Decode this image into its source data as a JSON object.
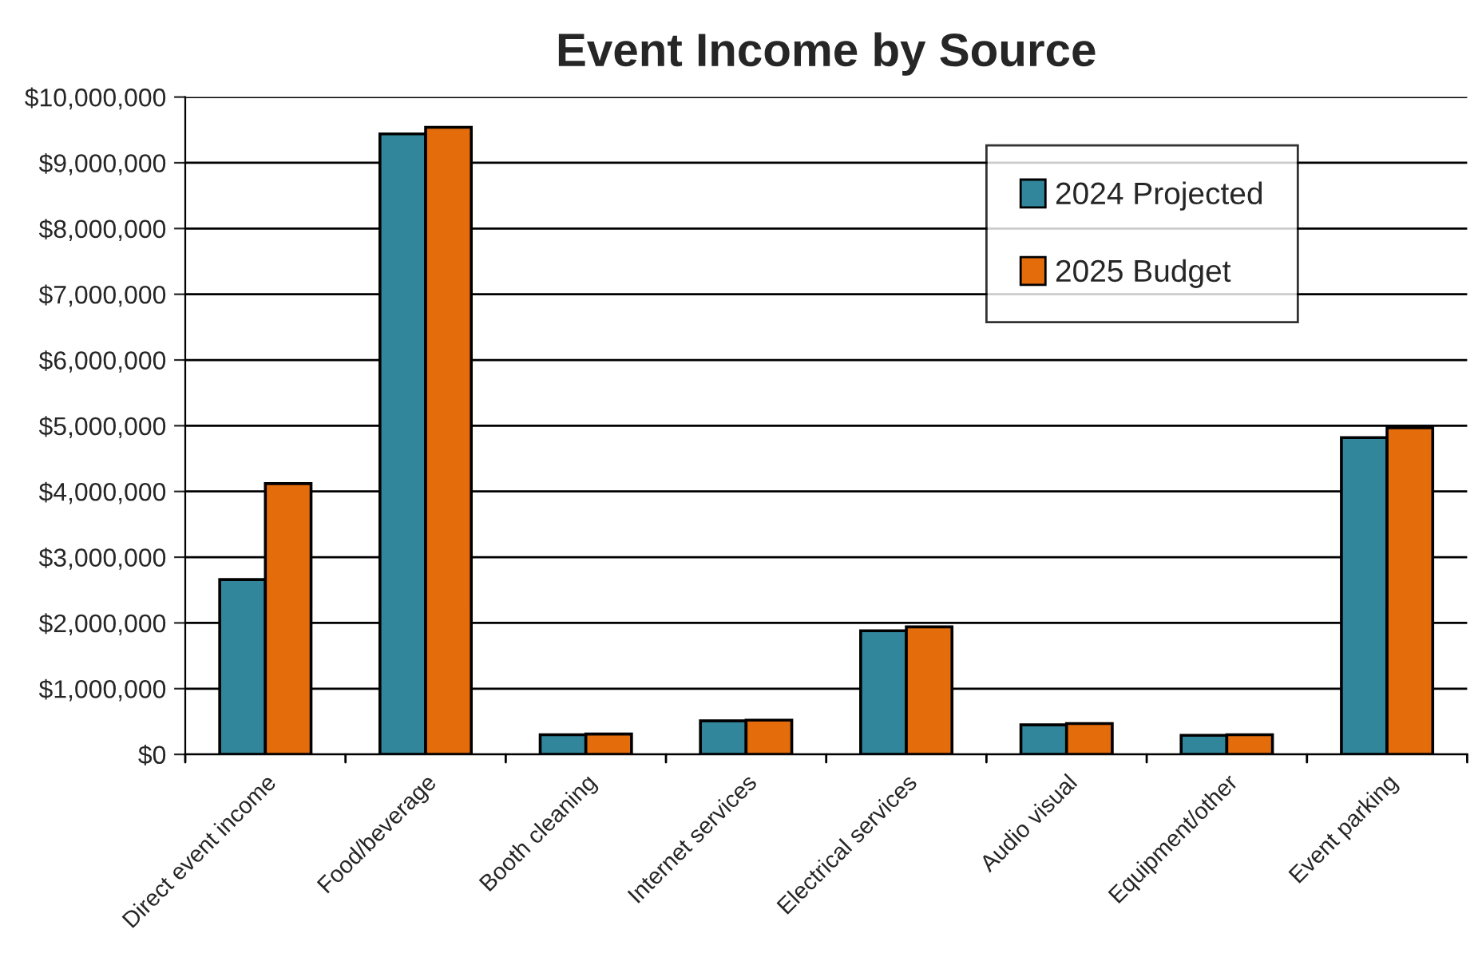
{
  "chart_data": {
    "type": "bar",
    "title": "Event Income by Source",
    "categories": [
      "Direct event income",
      "Food/beverage",
      "Booth cleaning",
      "Internet services",
      "Electrical services",
      "Audio visual",
      "Equipment/other",
      "Event parking"
    ],
    "series": [
      {
        "name": "2024 Projected",
        "color": "#31869b",
        "values": [
          2660000,
          9440000,
          300000,
          510000,
          1880000,
          450000,
          290000,
          4820000
        ]
      },
      {
        "name": "2025 Budget",
        "color": "#e46c0a",
        "values": [
          4120000,
          9540000,
          310000,
          520000,
          1940000,
          470000,
          300000,
          4970000
        ]
      }
    ],
    "ylim": [
      0,
      10000000
    ],
    "yticks": [
      {
        "value": 0,
        "label": "$0"
      },
      {
        "value": 1000000,
        "label": "$1,000,000"
      },
      {
        "value": 2000000,
        "label": "$2,000,000"
      },
      {
        "value": 3000000,
        "label": "$3,000,000"
      },
      {
        "value": 4000000,
        "label": "$4,000,000"
      },
      {
        "value": 5000000,
        "label": "$5,000,000"
      },
      {
        "value": 6000000,
        "label": "$6,000,000"
      },
      {
        "value": 7000000,
        "label": "$7,000,000"
      },
      {
        "value": 8000000,
        "label": "$8,000,000"
      },
      {
        "value": 9000000,
        "label": "$9,000,000"
      },
      {
        "value": 10000000,
        "label": "$10,000,000"
      }
    ],
    "grid": "y",
    "legend": "top right"
  }
}
